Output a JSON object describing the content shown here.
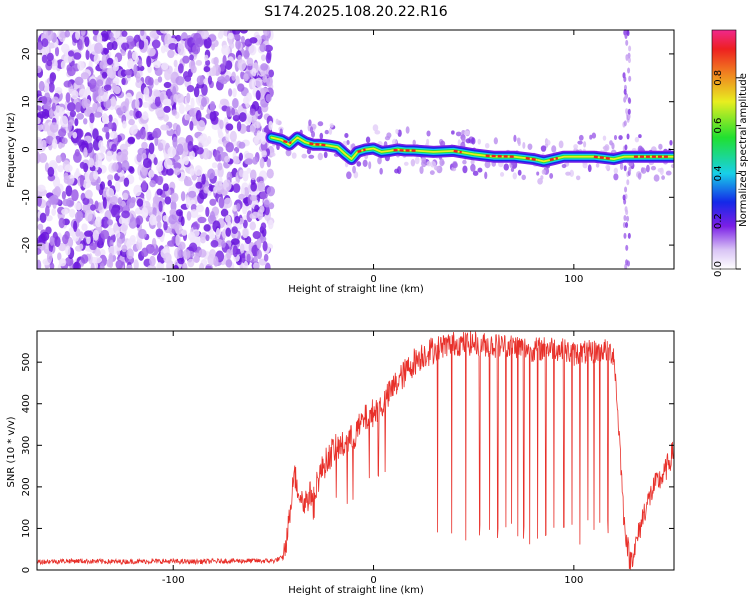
{
  "title": "S174.2025.108.20.22.R16",
  "chart_data": [
    {
      "type": "heatmap",
      "xlabel": "Height of straight line (km)",
      "ylabel": "Frequency (Hz)",
      "xlim": [
        -168,
        150
      ],
      "ylim": [
        -25,
        25
      ],
      "xticks": [
        -100,
        0,
        100
      ],
      "yticks": [
        -20,
        -10,
        0,
        10,
        20
      ],
      "colorbar": {
        "label": "Normalized spectral amplitude",
        "range": [
          0,
          1
        ],
        "ticks": [
          0.0,
          0.2,
          0.4,
          0.6,
          0.8
        ]
      },
      "noise_region_km": [
        -168,
        -51
      ],
      "ridge": {
        "x": [
          -51,
          -46,
          -42,
          -38,
          -34,
          -30,
          -26,
          -22,
          -18,
          -14,
          -11,
          -8,
          -4,
          0,
          4,
          8,
          12,
          16,
          20,
          30,
          40,
          50,
          60,
          70,
          80,
          85,
          90,
          95,
          100,
          110,
          120,
          125,
          130,
          140,
          150
        ],
        "y": [
          2.5,
          2,
          1,
          2.5,
          1.5,
          1,
          1,
          0.8,
          0.5,
          -1,
          -2,
          -0.5,
          0,
          0.2,
          -0.5,
          -0.3,
          0,
          -0.2,
          -0.2,
          -0.5,
          -0.3,
          -1,
          -1.5,
          -1.5,
          -2,
          -2.5,
          -2,
          -1.5,
          -1.5,
          -1.5,
          -2,
          -1.5,
          -1.5,
          -1.5,
          -1.5
        ]
      },
      "bands": [
        {
          "x": [
            125,
            128
          ],
          "note": "vertical interference band"
        }
      ]
    },
    {
      "type": "line",
      "xlabel": "Height of straight line (km)",
      "ylabel": "SNR (10 * v/v)",
      "xlim": [
        -168,
        150
      ],
      "ylim": [
        0,
        575
      ],
      "xticks": [
        -100,
        0,
        100
      ],
      "yticks": [
        0,
        100,
        200,
        300,
        400,
        500
      ],
      "color": "#e8302a",
      "x": [
        -168,
        -150,
        -130,
        -110,
        -90,
        -70,
        -50,
        -45,
        -42,
        -40,
        -38,
        -35,
        -30,
        -25,
        -20,
        -15,
        -10,
        -5,
        0,
        5,
        10,
        15,
        20,
        25,
        30,
        35,
        40,
        50,
        60,
        70,
        80,
        90,
        100,
        110,
        115,
        120,
        123,
        125,
        128,
        131,
        135,
        140,
        145,
        150
      ],
      "y": [
        20,
        22,
        20,
        21,
        20,
        22,
        22,
        30,
        120,
        240,
        200,
        160,
        190,
        250,
        290,
        300,
        320,
        360,
        380,
        400,
        440,
        470,
        500,
        520,
        530,
        540,
        545,
        545,
        540,
        540,
        530,
        535,
        520,
        525,
        530,
        520,
        300,
        120,
        20,
        60,
        140,
        200,
        230,
        290
      ],
      "dips_x": [
        32,
        39,
        46,
        53,
        58,
        62,
        66,
        69,
        72,
        75,
        78,
        82,
        86,
        90,
        95,
        99,
        103,
        107,
        110,
        113,
        117
      ]
    }
  ]
}
